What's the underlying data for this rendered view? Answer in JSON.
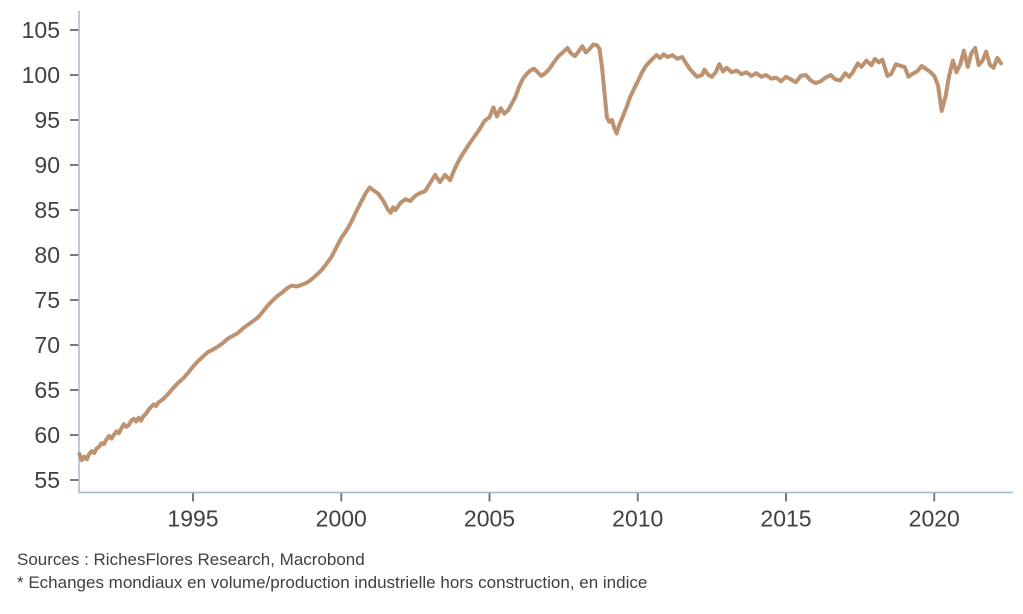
{
  "chart_data": {
    "type": "line",
    "xlabel": "",
    "ylabel": "",
    "xticks": [
      1995,
      2000,
      2005,
      2010,
      2015,
      2020
    ],
    "yticks": [
      55,
      60,
      65,
      70,
      75,
      80,
      85,
      90,
      95,
      100,
      105
    ],
    "xlim": [
      1991.1,
      2022.6
    ],
    "ylim": [
      53.5,
      107
    ],
    "grid": false,
    "legend": "none",
    "axis_color": "#A3B8D0",
    "tick_color": "#7A7A7A",
    "label_color": "#414141",
    "series": [
      {
        "name": "Echanges mondiaux en volume/production industrielle hors construction, en indice",
        "color": "#BD9270",
        "points": [
          [
            1991.17,
            57.9
          ],
          [
            1991.25,
            57.2
          ],
          [
            1991.33,
            57.6
          ],
          [
            1991.42,
            57.3
          ],
          [
            1991.5,
            57.9
          ],
          [
            1991.58,
            58.2
          ],
          [
            1991.67,
            58.0
          ],
          [
            1991.75,
            58.5
          ],
          [
            1991.83,
            58.7
          ],
          [
            1991.92,
            59.1
          ],
          [
            1992.0,
            59.0
          ],
          [
            1992.08,
            59.5
          ],
          [
            1992.17,
            59.9
          ],
          [
            1992.25,
            59.6
          ],
          [
            1992.33,
            60.0
          ],
          [
            1992.42,
            60.4
          ],
          [
            1992.5,
            60.2
          ],
          [
            1992.58,
            60.7
          ],
          [
            1992.67,
            61.2
          ],
          [
            1992.75,
            60.9
          ],
          [
            1992.83,
            61.1
          ],
          [
            1992.92,
            61.6
          ],
          [
            1993.0,
            61.8
          ],
          [
            1993.08,
            61.5
          ],
          [
            1993.17,
            61.9
          ],
          [
            1993.25,
            61.6
          ],
          [
            1993.33,
            62.1
          ],
          [
            1993.42,
            62.4
          ],
          [
            1993.5,
            62.8
          ],
          [
            1993.58,
            63.1
          ],
          [
            1993.67,
            63.4
          ],
          [
            1993.75,
            63.2
          ],
          [
            1993.83,
            63.6
          ],
          [
            1994.0,
            64.0
          ],
          [
            1994.17,
            64.6
          ],
          [
            1994.33,
            65.2
          ],
          [
            1994.5,
            65.8
          ],
          [
            1994.67,
            66.3
          ],
          [
            1994.83,
            66.9
          ],
          [
            1995.0,
            67.6
          ],
          [
            1995.17,
            68.2
          ],
          [
            1995.33,
            68.7
          ],
          [
            1995.5,
            69.2
          ],
          [
            1995.67,
            69.5
          ],
          [
            1995.83,
            69.8
          ],
          [
            1996.0,
            70.2
          ],
          [
            1996.17,
            70.7
          ],
          [
            1996.33,
            71.0
          ],
          [
            1996.5,
            71.3
          ],
          [
            1996.67,
            71.8
          ],
          [
            1996.83,
            72.2
          ],
          [
            1997.0,
            72.6
          ],
          [
            1997.17,
            73.0
          ],
          [
            1997.33,
            73.6
          ],
          [
            1997.5,
            74.3
          ],
          [
            1997.67,
            74.9
          ],
          [
            1997.83,
            75.4
          ],
          [
            1998.0,
            75.8
          ],
          [
            1998.17,
            76.3
          ],
          [
            1998.33,
            76.6
          ],
          [
            1998.5,
            76.5
          ],
          [
            1998.67,
            76.7
          ],
          [
            1998.83,
            76.9
          ],
          [
            1999.0,
            77.3
          ],
          [
            1999.17,
            77.8
          ],
          [
            1999.33,
            78.3
          ],
          [
            1999.5,
            79.0
          ],
          [
            1999.67,
            79.8
          ],
          [
            1999.83,
            80.8
          ],
          [
            2000.0,
            81.9
          ],
          [
            2000.17,
            82.7
          ],
          [
            2000.33,
            83.6
          ],
          [
            2000.5,
            84.8
          ],
          [
            2000.67,
            85.9
          ],
          [
            2000.83,
            86.9
          ],
          [
            2000.96,
            87.5
          ],
          [
            2001.08,
            87.2
          ],
          [
            2001.25,
            86.8
          ],
          [
            2001.42,
            86.0
          ],
          [
            2001.58,
            85.0
          ],
          [
            2001.67,
            84.7
          ],
          [
            2001.75,
            85.3
          ],
          [
            2001.83,
            85.0
          ],
          [
            2002.0,
            85.8
          ],
          [
            2002.17,
            86.2
          ],
          [
            2002.33,
            86.0
          ],
          [
            2002.5,
            86.6
          ],
          [
            2002.67,
            86.9
          ],
          [
            2002.83,
            87.1
          ],
          [
            2003.0,
            88.0
          ],
          [
            2003.17,
            88.9
          ],
          [
            2003.33,
            88.1
          ],
          [
            2003.5,
            88.9
          ],
          [
            2003.67,
            88.3
          ],
          [
            2003.83,
            89.6
          ],
          [
            2004.0,
            90.7
          ],
          [
            2004.17,
            91.6
          ],
          [
            2004.33,
            92.4
          ],
          [
            2004.5,
            93.2
          ],
          [
            2004.67,
            94.0
          ],
          [
            2004.83,
            94.9
          ],
          [
            2005.0,
            95.3
          ],
          [
            2005.13,
            96.4
          ],
          [
            2005.25,
            95.4
          ],
          [
            2005.38,
            96.3
          ],
          [
            2005.5,
            95.7
          ],
          [
            2005.63,
            96.1
          ],
          [
            2005.75,
            96.8
          ],
          [
            2005.88,
            97.6
          ],
          [
            2006.0,
            98.7
          ],
          [
            2006.13,
            99.6
          ],
          [
            2006.25,
            100.1
          ],
          [
            2006.38,
            100.5
          ],
          [
            2006.5,
            100.7
          ],
          [
            2006.63,
            100.3
          ],
          [
            2006.75,
            99.9
          ],
          [
            2006.88,
            100.2
          ],
          [
            2007.0,
            100.6
          ],
          [
            2007.17,
            101.4
          ],
          [
            2007.33,
            102.1
          ],
          [
            2007.5,
            102.6
          ],
          [
            2007.63,
            103.0
          ],
          [
            2007.75,
            102.4
          ],
          [
            2007.88,
            102.1
          ],
          [
            2008.0,
            102.6
          ],
          [
            2008.13,
            103.2
          ],
          [
            2008.25,
            102.5
          ],
          [
            2008.38,
            102.9
          ],
          [
            2008.5,
            103.4
          ],
          [
            2008.63,
            103.3
          ],
          [
            2008.71,
            102.9
          ],
          [
            2008.79,
            101.0
          ],
          [
            2008.88,
            98.0
          ],
          [
            2008.96,
            95.3
          ],
          [
            2009.04,
            94.8
          ],
          [
            2009.13,
            95.0
          ],
          [
            2009.21,
            94.1
          ],
          [
            2009.29,
            93.5
          ],
          [
            2009.38,
            94.5
          ],
          [
            2009.5,
            95.4
          ],
          [
            2009.63,
            96.5
          ],
          [
            2009.75,
            97.6
          ],
          [
            2009.88,
            98.5
          ],
          [
            2010.0,
            99.3
          ],
          [
            2010.13,
            100.2
          ],
          [
            2010.25,
            100.9
          ],
          [
            2010.38,
            101.4
          ],
          [
            2010.5,
            101.8
          ],
          [
            2010.63,
            102.2
          ],
          [
            2010.75,
            101.9
          ],
          [
            2010.88,
            102.3
          ],
          [
            2011.0,
            102.0
          ],
          [
            2011.17,
            102.2
          ],
          [
            2011.33,
            101.8
          ],
          [
            2011.5,
            102.0
          ],
          [
            2011.63,
            101.3
          ],
          [
            2011.75,
            100.7
          ],
          [
            2011.88,
            100.2
          ],
          [
            2012.0,
            99.8
          ],
          [
            2012.17,
            100.0
          ],
          [
            2012.25,
            100.6
          ],
          [
            2012.38,
            100.0
          ],
          [
            2012.5,
            99.8
          ],
          [
            2012.63,
            100.3
          ],
          [
            2012.75,
            101.2
          ],
          [
            2012.88,
            100.4
          ],
          [
            2013.0,
            100.8
          ],
          [
            2013.17,
            100.3
          ],
          [
            2013.33,
            100.5
          ],
          [
            2013.5,
            100.1
          ],
          [
            2013.67,
            100.3
          ],
          [
            2013.83,
            99.9
          ],
          [
            2014.0,
            100.2
          ],
          [
            2014.17,
            99.8
          ],
          [
            2014.33,
            100.0
          ],
          [
            2014.5,
            99.6
          ],
          [
            2014.67,
            99.7
          ],
          [
            2014.83,
            99.3
          ],
          [
            2015.0,
            99.8
          ],
          [
            2015.17,
            99.5
          ],
          [
            2015.33,
            99.2
          ],
          [
            2015.5,
            99.9
          ],
          [
            2015.67,
            100.0
          ],
          [
            2015.83,
            99.4
          ],
          [
            2016.0,
            99.1
          ],
          [
            2016.17,
            99.3
          ],
          [
            2016.33,
            99.7
          ],
          [
            2016.5,
            100.0
          ],
          [
            2016.67,
            99.5
          ],
          [
            2016.83,
            99.4
          ],
          [
            2017.0,
            100.2
          ],
          [
            2017.13,
            99.8
          ],
          [
            2017.25,
            100.3
          ],
          [
            2017.42,
            101.3
          ],
          [
            2017.54,
            100.9
          ],
          [
            2017.71,
            101.6
          ],
          [
            2017.88,
            101.1
          ],
          [
            2018.0,
            101.8
          ],
          [
            2018.13,
            101.4
          ],
          [
            2018.25,
            101.7
          ],
          [
            2018.42,
            99.9
          ],
          [
            2018.54,
            100.1
          ],
          [
            2018.71,
            101.2
          ],
          [
            2018.88,
            101.0
          ],
          [
            2019.0,
            100.9
          ],
          [
            2019.13,
            99.8
          ],
          [
            2019.25,
            100.1
          ],
          [
            2019.42,
            100.4
          ],
          [
            2019.58,
            101.0
          ],
          [
            2019.71,
            100.7
          ],
          [
            2019.88,
            100.3
          ],
          [
            2020.0,
            99.9
          ],
          [
            2020.13,
            98.8
          ],
          [
            2020.25,
            96.0
          ],
          [
            2020.38,
            97.6
          ],
          [
            2020.5,
            99.9
          ],
          [
            2020.63,
            101.6
          ],
          [
            2020.75,
            100.3
          ],
          [
            2020.88,
            101.2
          ],
          [
            2021.0,
            102.7
          ],
          [
            2021.13,
            100.9
          ],
          [
            2021.25,
            102.4
          ],
          [
            2021.38,
            103.0
          ],
          [
            2021.5,
            101.1
          ],
          [
            2021.63,
            101.6
          ],
          [
            2021.75,
            102.6
          ],
          [
            2021.88,
            101.1
          ],
          [
            2022.0,
            100.8
          ],
          [
            2022.13,
            101.9
          ],
          [
            2022.25,
            101.3
          ]
        ]
      }
    ]
  },
  "footer": {
    "sources_line": "Sources : RichesFlores Research, Macrobond",
    "note_line": "* Echanges mondiaux en volume/production industrielle hors construction, en indice"
  }
}
